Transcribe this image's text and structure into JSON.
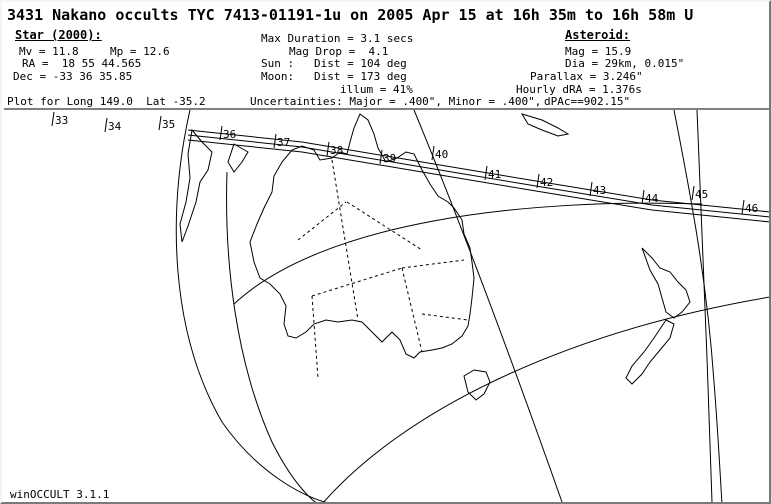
{
  "title": "3431 Nakano occults TYC 7413-01191-1u on 2005 Apr 15 at 16h 35m to 16h 58m U",
  "star": {
    "header": "Star (2000):",
    "mv": "Mv = 11.8",
    "mp": "Mp = 12.6",
    "ra": "RA =  18 55 44.565",
    "dec": "Dec = -33 36 35.85"
  },
  "event": {
    "max_duration": "Max Duration = 3.1 secs",
    "mag_drop": "Mag Drop =  4.1",
    "sun": "Sun :   Dist = 104 deg",
    "moon": "Moon:   Dist = 173 deg",
    "illum": "illum = 41%"
  },
  "asteroid": {
    "header": "Asteroid:",
    "mag": "Mag = 15.9",
    "dia": "Dia = 29km, 0.015\"",
    "parallax": "Parallax = 3.246\"",
    "hourly_dra": "Hourly dRA = 1.376s",
    "dpa": "dPAc==902.15\""
  },
  "plot_for": "Plot for Long 149.0  Lat -35.2",
  "uncertainties": "Uncertainties: Major = .400\", Minor = .400\",",
  "footer": "winOCCULT 3.1.1",
  "time_ticks": [
    "33",
    "34",
    "35",
    "36",
    "37",
    "38",
    "39",
    "40",
    "41",
    "42",
    "43",
    "44",
    "45",
    "46"
  ],
  "colors": {
    "ink": "#000000",
    "background": "#ffffff"
  }
}
